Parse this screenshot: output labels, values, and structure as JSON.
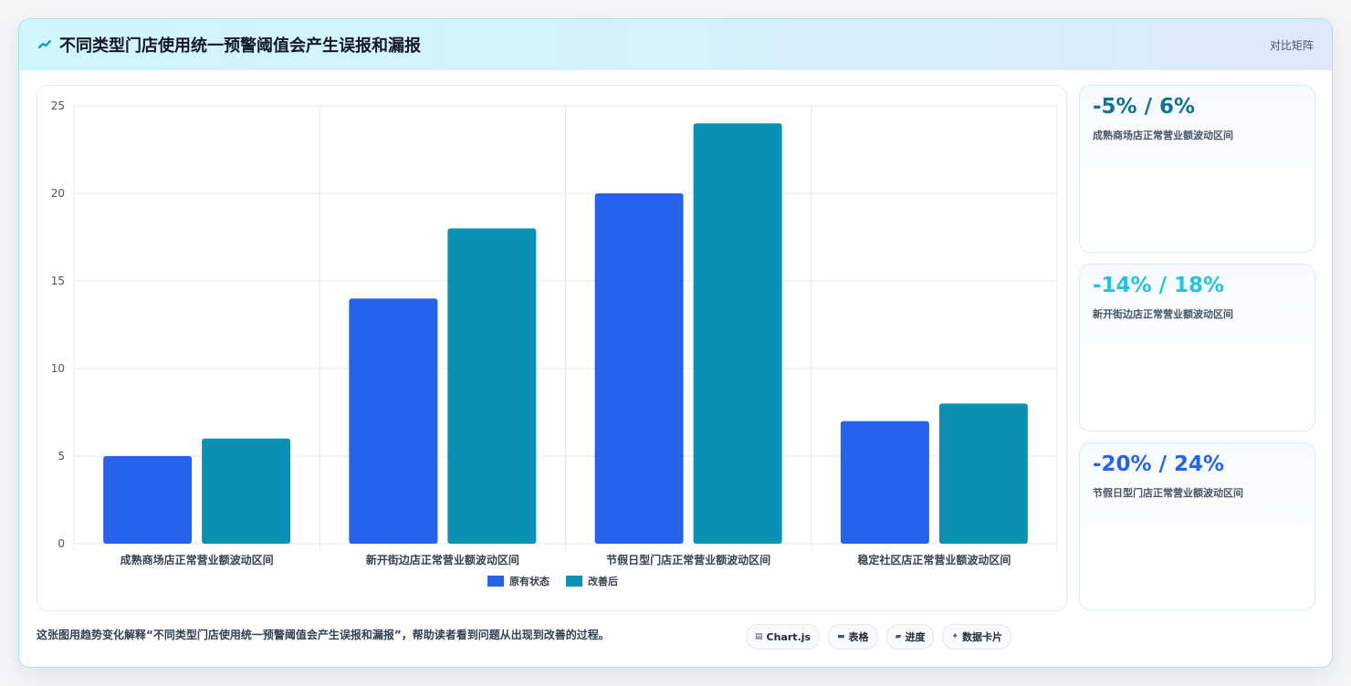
{
  "header": {
    "title": "不同类型门店使用统一预警阈值会产生误报和漏报",
    "right_label": "对比矩阵",
    "icon": "sparkline-icon"
  },
  "chart_data": {
    "type": "bar",
    "categories": [
      "成熟商场店正常营业额波动区间",
      "新开街边店正常营业额波动区间",
      "节假日型门店正常营业额波动区间",
      "稳定社区店正常营业额波动区间"
    ],
    "series": [
      {
        "name": "原有状态",
        "values": [
          5,
          14,
          20,
          7
        ],
        "color": "#2563eb"
      },
      {
        "name": "改善后",
        "values": [
          6,
          18,
          24,
          8
        ],
        "color": "#0891b2"
      }
    ],
    "ylim": [
      0,
      25
    ],
    "yticks": [
      0,
      5,
      10,
      15,
      20,
      25
    ],
    "grid": true,
    "legend": "bottom"
  },
  "stats": [
    {
      "value": "-5% / 6%",
      "label": "成熟商场店正常营业额波动区间",
      "color": "#0e7490"
    },
    {
      "value": "-14% / 18%",
      "label": "新开街边店正常营业额波动区间",
      "color": "#22c3e6"
    },
    {
      "value": "-20% / 24%",
      "label": "节假日型门店正常营业额波动区间",
      "color": "#2563eb"
    }
  ],
  "footer": {
    "description": "这张图用趋势变化解释“不同类型门店使用统一预警阈值会产生误报和漏报”，帮助读者看到问题从出现到改善的过程。",
    "chips": [
      {
        "icon": "chart-icon",
        "glyph": "▤",
        "label": "Chart.js"
      },
      {
        "icon": "table-icon",
        "glyph": "▬",
        "label": "表格"
      },
      {
        "icon": "progress-icon",
        "glyph": "▰",
        "label": "进度"
      },
      {
        "icon": "sparkle-icon",
        "glyph": "✦",
        "label": "数据卡片"
      }
    ]
  }
}
